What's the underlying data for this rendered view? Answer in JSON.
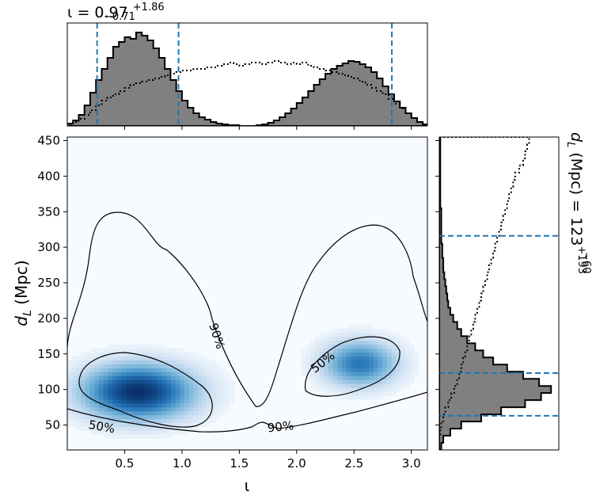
{
  "chart_data": [
    {
      "type": "histogram",
      "panel": "top-marginal",
      "title_main": "ι = 0.97",
      "title_sup": "+1.86",
      "title_sub": "−0.71",
      "xlim": [
        0.0,
        3.14
      ],
      "bins_x": [
        0.0,
        0.05,
        0.1,
        0.15,
        0.2,
        0.25,
        0.3,
        0.35,
        0.4,
        0.45,
        0.5,
        0.55,
        0.6,
        0.65,
        0.7,
        0.75,
        0.8,
        0.85,
        0.9,
        0.95,
        1.0,
        1.05,
        1.1,
        1.15,
        1.2,
        1.25,
        1.3,
        1.35,
        1.4,
        1.45,
        1.5,
        1.55,
        1.6,
        1.65,
        1.7,
        1.75,
        1.8,
        1.85,
        1.9,
        1.95,
        2.0,
        2.05,
        2.1,
        2.15,
        2.2,
        2.25,
        2.3,
        2.35,
        2.4,
        2.45,
        2.5,
        2.55,
        2.6,
        2.65,
        2.7,
        2.75,
        2.8,
        2.85,
        2.9,
        2.95,
        3.0,
        3.05,
        3.1
      ],
      "posterior_counts": [
        3,
        7,
        14,
        26,
        42,
        58,
        72,
        86,
        100,
        106,
        112,
        110,
        118,
        114,
        108,
        98,
        86,
        72,
        58,
        44,
        32,
        23,
        16,
        11,
        8,
        5,
        3,
        2,
        1,
        1,
        0,
        0,
        0,
        1,
        2,
        4,
        7,
        11,
        16,
        22,
        29,
        36,
        44,
        52,
        59,
        66,
        72,
        76,
        79,
        82,
        81,
        78,
        74,
        68,
        60,
        50,
        40,
        31,
        23,
        16,
        10,
        5,
        2
      ],
      "prior_counts": [
        2,
        5,
        9,
        14,
        20,
        26,
        32,
        36,
        40,
        44,
        48,
        52,
        54,
        56,
        58,
        60,
        62,
        64,
        66,
        68,
        70,
        70,
        72,
        72,
        74,
        74,
        76,
        78,
        80,
        78,
        76,
        78,
        80,
        80,
        78,
        80,
        82,
        80,
        78,
        80,
        78,
        80,
        76,
        74,
        72,
        70,
        68,
        66,
        64,
        62,
        60,
        56,
        52,
        48,
        44,
        40,
        34,
        28,
        22,
        16,
        10,
        5,
        2
      ],
      "ymax": 120,
      "median": 0.97,
      "interval": [
        0.26,
        2.83
      ]
    },
    {
      "type": "heatmap",
      "panel": "joint",
      "xlabel": "ι",
      "ylabel": "d",
      "ylabel_sub": "L",
      "ylabel_unit": " (Mpc)",
      "xlim": [
        0.0,
        3.14
      ],
      "ylim": [
        15,
        455
      ],
      "xticks": [
        "0.5",
        "1.0",
        "1.5",
        "2.0",
        "2.5",
        "3.0"
      ],
      "yticks": [
        "50",
        "100",
        "150",
        "200",
        "250",
        "300",
        "350",
        "400",
        "450"
      ],
      "density_peaks": [
        {
          "x": 0.62,
          "y": 97,
          "sx": 0.3,
          "sy": 24,
          "weight": 1.0
        },
        {
          "x": 2.55,
          "y": 137,
          "sx": 0.2,
          "sy": 20,
          "weight": 0.62
        }
      ],
      "contours": [
        {
          "level": "50%",
          "label": "50%",
          "label_x": 0.3,
          "label_y": 47,
          "label_angle": 10
        },
        {
          "level": "50%",
          "label": "50%",
          "label_x": 2.23,
          "label_y": 138,
          "label_angle": -38
        },
        {
          "level": "90%",
          "label": "90%",
          "label_x": 1.3,
          "label_y": 175,
          "label_angle": 72
        },
        {
          "level": "90%",
          "label": "90%",
          "label_x": 1.86,
          "label_y": 47,
          "label_angle": -6
        }
      ]
    },
    {
      "type": "histogram",
      "panel": "right-marginal",
      "title_main": "d",
      "title_sub_L": "L",
      "title_mid": " (Mpc) = 123",
      "title_sup": "+193",
      "title_sub": "−60",
      "ylim": [
        15,
        455
      ],
      "bins_y": [
        15,
        25,
        35,
        45,
        55,
        65,
        75,
        85,
        95,
        105,
        115,
        125,
        135,
        145,
        155,
        165,
        175,
        185,
        195,
        205,
        215,
        225,
        235,
        245,
        255,
        265,
        275,
        285,
        295,
        305,
        315,
        325,
        335,
        345,
        355,
        365,
        375,
        385,
        395,
        405,
        415,
        425,
        435,
        445
      ],
      "posterior_counts": [
        2,
        4,
        11,
        22,
        42,
        62,
        86,
        102,
        112,
        100,
        84,
        68,
        54,
        44,
        36,
        28,
        22,
        18,
        14,
        11,
        9,
        8,
        7,
        6,
        5,
        4,
        4,
        3,
        3,
        2,
        2,
        2,
        2,
        2,
        1,
        1,
        1,
        1,
        1,
        1,
        1,
        1,
        1,
        1
      ],
      "prior_counts": [
        0,
        0,
        1,
        2,
        4,
        6,
        9,
        12,
        15,
        18,
        20,
        22,
        24,
        26,
        28,
        30,
        32,
        34,
        36,
        38,
        40,
        42,
        44,
        46,
        48,
        50,
        52,
        54,
        56,
        58,
        60,
        62,
        64,
        66,
        68,
        70,
        72,
        74,
        76,
        80,
        84,
        86,
        88,
        90
      ],
      "xmax": 115,
      "median": 123,
      "interval": [
        63,
        316
      ]
    }
  ],
  "colors": {
    "hist_fill": "#808080",
    "median_line": "#1f77b4",
    "heat_low": "#f7fbff",
    "heat_high": "#08306b",
    "contour": "#000000"
  }
}
